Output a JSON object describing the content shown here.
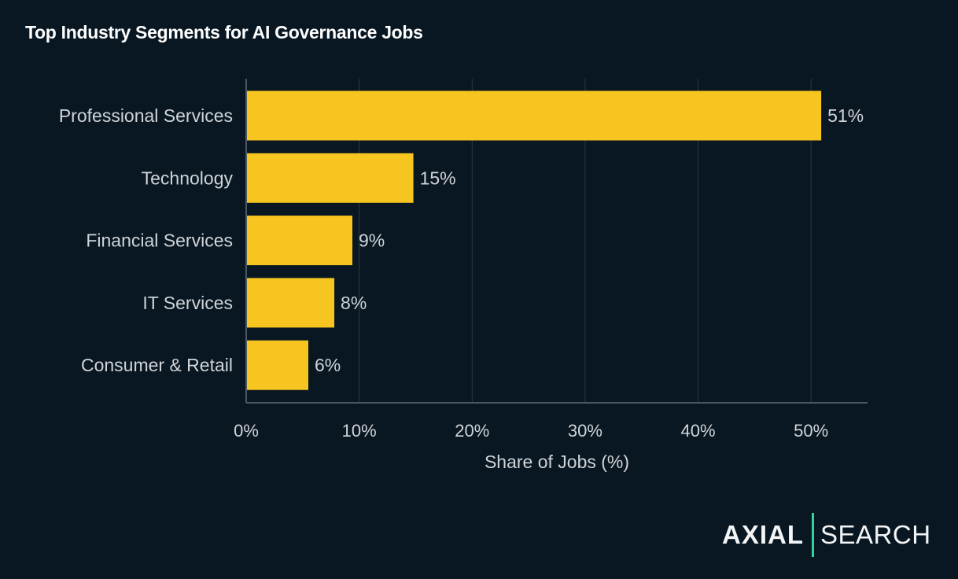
{
  "chart_data": {
    "type": "bar",
    "orientation": "horizontal",
    "title": "Top Industry Segments for AI Governance Jobs",
    "xlabel": "Share of Jobs (%)",
    "ylabel": "",
    "categories": [
      "Professional Services",
      "Technology",
      "Financial Services",
      "IT Services",
      "Consumer & Retail"
    ],
    "values": [
      50.9,
      14.8,
      9.4,
      7.8,
      5.5
    ],
    "data_labels": [
      "51%",
      "15%",
      "9%",
      "8%",
      "6%"
    ],
    "xlim": [
      0,
      55
    ],
    "xticks": [
      0,
      10,
      20,
      30,
      40,
      50
    ],
    "xtick_labels": [
      "0%",
      "10%",
      "20%",
      "30%",
      "40%",
      "50%"
    ],
    "grid": "vertical",
    "colors": {
      "bar": "#F7C520",
      "background": "#081722",
      "grid": "#2A3A44",
      "text": "#D0D4D8"
    }
  },
  "logo": {
    "left": "AXIAL",
    "right": "SEARCH",
    "accent": "#2ED3A0"
  }
}
